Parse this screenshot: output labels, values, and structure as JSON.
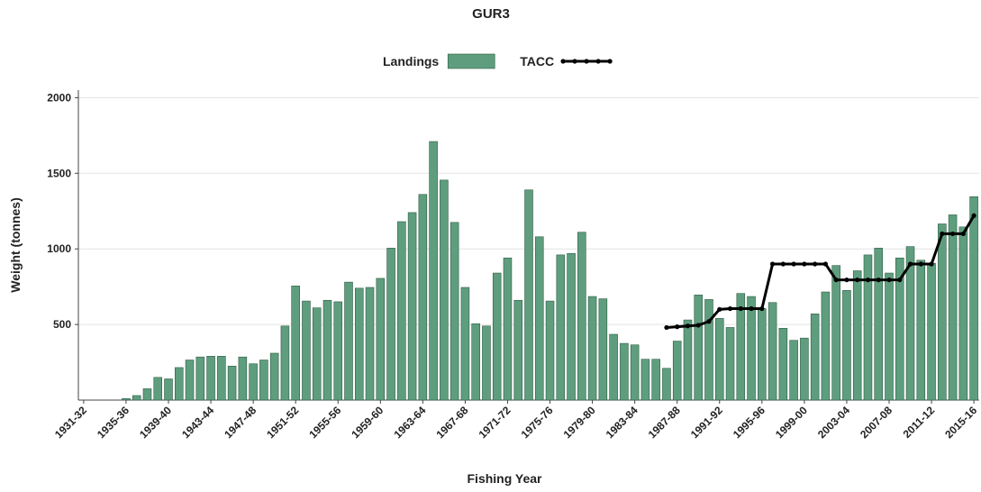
{
  "chart_data": {
    "type": "bar",
    "title": "GUR3",
    "x_label": "Fishing Year",
    "y_label": "Weight (tonnes)",
    "categories": [
      "1931-32",
      null,
      null,
      null,
      "1935-36",
      null,
      null,
      null,
      "1939-40",
      null,
      null,
      null,
      "1943-44",
      null,
      null,
      null,
      "1947-48",
      null,
      null,
      null,
      "1951-52",
      null,
      null,
      null,
      "1955-56",
      null,
      null,
      null,
      "1959-60",
      null,
      null,
      null,
      "1963-64",
      null,
      null,
      null,
      "1967-68",
      null,
      null,
      null,
      "1971-72",
      null,
      null,
      null,
      "1975-76",
      null,
      null,
      null,
      "1979-80",
      null,
      null,
      null,
      "1983-84",
      null,
      null,
      null,
      "1987-88",
      null,
      null,
      null,
      "1991-92",
      null,
      null,
      null,
      "1995-96",
      null,
      null,
      null,
      "1999-00",
      null,
      null,
      null,
      "2003-04",
      null,
      null,
      null,
      "2007-08",
      null,
      null,
      null,
      "2011-12",
      null,
      null,
      null,
      "2015-16"
    ],
    "series": [
      {
        "name": "Landings",
        "type": "bar",
        "color": "#5e9e7e",
        "values": [
          0,
          0,
          0,
          0,
          10,
          30,
          75,
          150,
          140,
          215,
          265,
          285,
          290,
          290,
          225,
          285,
          240,
          265,
          310,
          490,
          755,
          655,
          610,
          660,
          650,
          780,
          740,
          745,
          805,
          1005,
          1180,
          1240,
          1360,
          1710,
          1455,
          1175,
          745,
          505,
          490,
          840,
          940,
          660,
          1390,
          1080,
          655,
          960,
          970,
          1110,
          685,
          670,
          435,
          375,
          365,
          270,
          270,
          210,
          390,
          530,
          695,
          665,
          540,
          480,
          705,
          685,
          605,
          645,
          475,
          395,
          410,
          570,
          715,
          890,
          725,
          855,
          960,
          1005,
          840,
          940,
          1015,
          925,
          905,
          1165,
          1225,
          1145,
          1345
        ]
      },
      {
        "name": "TACC",
        "type": "line",
        "color": "#000000",
        "values": [
          null,
          null,
          null,
          null,
          null,
          null,
          null,
          null,
          null,
          null,
          null,
          null,
          null,
          null,
          null,
          null,
          null,
          null,
          null,
          null,
          null,
          null,
          null,
          null,
          null,
          null,
          null,
          null,
          null,
          null,
          null,
          null,
          null,
          null,
          null,
          null,
          null,
          null,
          null,
          null,
          null,
          null,
          null,
          null,
          null,
          null,
          null,
          null,
          null,
          null,
          null,
          null,
          null,
          null,
          null,
          480,
          485,
          490,
          495,
          520,
          600,
          605,
          605,
          605,
          605,
          900,
          900,
          900,
          900,
          900,
          900,
          795,
          795,
          795,
          795,
          795,
          795,
          795,
          900,
          900,
          900,
          1100,
          1100,
          1100,
          1220
        ]
      }
    ],
    "ylim": [
      0,
      2050
    ],
    "yticks": [
      500,
      1000,
      1500,
      2000
    ],
    "grid": true,
    "legend": "top"
  }
}
